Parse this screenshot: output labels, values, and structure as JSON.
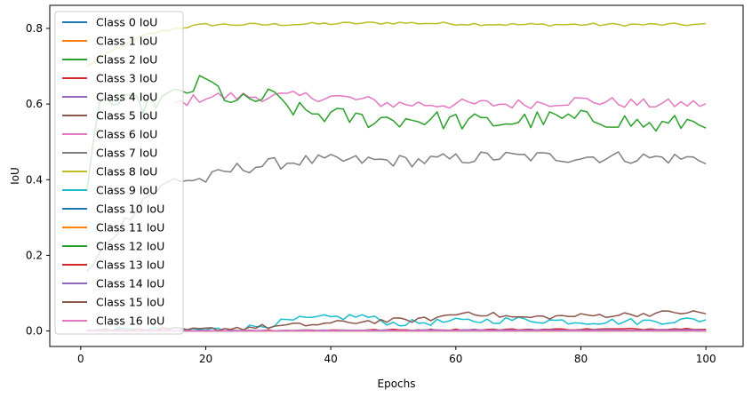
{
  "chart_data": {
    "type": "line",
    "title": "",
    "xlabel": "Epochs",
    "ylabel": "IoU",
    "xlim": [
      -4.95,
      105.95
    ],
    "ylim": [
      -0.041,
      0.861
    ],
    "xticks": [
      0,
      20,
      40,
      60,
      80,
      100
    ],
    "yticks": [
      0.0,
      0.2,
      0.4,
      0.6,
      0.8
    ],
    "xtick_labels": [
      "0",
      "20",
      "40",
      "60",
      "80",
      "100"
    ],
    "ytick_labels": [
      "0.0",
      "0.2",
      "0.4",
      "0.6",
      "0.8"
    ],
    "grid": false,
    "legend_position": "upper-left",
    "series": [
      {
        "name": "Class 0 IoU",
        "color": "#1f77b4",
        "keypoints": [
          [
            1,
            0
          ],
          [
            100,
            0
          ]
        ],
        "noise": 0
      },
      {
        "name": "Class 1 IoU",
        "color": "#ff7f0e",
        "keypoints": [
          [
            1,
            0
          ],
          [
            100,
            0
          ]
        ],
        "noise": 0
      },
      {
        "name": "Class 2 IoU",
        "color": "#2ca02c",
        "keypoints": [
          [
            1,
            0
          ],
          [
            100,
            0
          ]
        ],
        "noise": 0
      },
      {
        "name": "Class 3 IoU",
        "color": "#d62728",
        "keypoints": [
          [
            1,
            0
          ],
          [
            100,
            0
          ]
        ],
        "noise": 0
      },
      {
        "name": "Class 4 IoU",
        "color": "#9467bd",
        "keypoints": [
          [
            1,
            0
          ],
          [
            100,
            0
          ]
        ],
        "noise": 0
      },
      {
        "name": "Class 5 IoU",
        "color": "#8c564b",
        "keypoints": [
          [
            1,
            0
          ],
          [
            100,
            0
          ]
        ],
        "noise": 0
      },
      {
        "name": "Class 6 IoU",
        "color": "#e377c2",
        "keypoints": [
          [
            1,
            0
          ],
          [
            100,
            0
          ]
        ],
        "noise": 0
      },
      {
        "name": "Class 7 IoU",
        "color": "#7f7f7f",
        "keypoints": [
          [
            1,
            0
          ],
          [
            100,
            0
          ]
        ],
        "noise": 0
      },
      {
        "name": "Class 8 IoU",
        "color": "#bcbd22",
        "keypoints": [
          [
            1,
            0
          ],
          [
            100,
            0
          ]
        ],
        "noise": 0
      },
      {
        "name": "Class 9 IoU",
        "color": "#17becf",
        "keypoints": [
          [
            1,
            0
          ],
          [
            15,
            0.002
          ],
          [
            25,
            0.004
          ],
          [
            35,
            0.03
          ],
          [
            45,
            0.04
          ],
          [
            50,
            0.02
          ],
          [
            60,
            0.025
          ],
          [
            70,
            0.03
          ],
          [
            80,
            0.025
          ],
          [
            90,
            0.025
          ],
          [
            100,
            0.03
          ]
        ],
        "noise": 0.009
      },
      {
        "name": "Class 10 IoU",
        "color": "#1f77b4",
        "keypoints": [
          [
            1,
            0
          ],
          [
            100,
            0.002
          ]
        ],
        "noise": 0.001
      },
      {
        "name": "Class 11 IoU",
        "color": "#ff7f0e",
        "keypoints": [
          [
            1,
            0
          ],
          [
            100,
            0.001
          ]
        ],
        "noise": 0.001
      },
      {
        "name": "Class 12 IoU",
        "color": "#2ca02c",
        "keypoints": [
          [
            1,
            0.35
          ],
          [
            3,
            0.62
          ],
          [
            5,
            0.6
          ],
          [
            10,
            0.6
          ],
          [
            15,
            0.62
          ],
          [
            20,
            0.66
          ],
          [
            25,
            0.6
          ],
          [
            30,
            0.62
          ],
          [
            35,
            0.58
          ],
          [
            45,
            0.56
          ],
          [
            55,
            0.56
          ],
          [
            65,
            0.55
          ],
          [
            75,
            0.56
          ],
          [
            85,
            0.56
          ],
          [
            92,
            0.54
          ],
          [
            100,
            0.56
          ]
        ],
        "noise": 0.025
      },
      {
        "name": "Class 13 IoU",
        "color": "#d62728",
        "keypoints": [
          [
            1,
            0
          ],
          [
            40,
            0.002
          ],
          [
            70,
            0.004
          ],
          [
            100,
            0.006
          ]
        ],
        "noise": 0.002
      },
      {
        "name": "Class 14 IoU",
        "color": "#9467bd",
        "keypoints": [
          [
            1,
            0
          ],
          [
            50,
            0.002
          ],
          [
            100,
            0.003
          ]
        ],
        "noise": 0.001
      },
      {
        "name": "Class 15 IoU",
        "color": "#8c564b",
        "keypoints": [
          [
            1,
            0
          ],
          [
            18,
            0.002
          ],
          [
            25,
            0.008
          ],
          [
            35,
            0.015
          ],
          [
            45,
            0.025
          ],
          [
            55,
            0.03
          ],
          [
            62,
            0.05
          ],
          [
            70,
            0.035
          ],
          [
            80,
            0.04
          ],
          [
            90,
            0.045
          ],
          [
            97,
            0.05
          ],
          [
            100,
            0.045
          ]
        ],
        "noise": 0.007
      },
      {
        "name": "Class 16 IoU",
        "color": "#e377c2",
        "keypoints": [
          [
            1,
            0
          ],
          [
            100,
            0
          ]
        ],
        "noise": 0
      }
    ],
    "extra_lines": [
      {
        "color": "#bcbd22",
        "keypoints": [
          [
            1,
            0.7
          ],
          [
            5,
            0.74
          ],
          [
            10,
            0.78
          ],
          [
            15,
            0.8
          ],
          [
            20,
            0.81
          ],
          [
            30,
            0.81
          ],
          [
            50,
            0.815
          ],
          [
            70,
            0.81
          ],
          [
            85,
            0.81
          ],
          [
            100,
            0.81
          ]
        ],
        "noise": 0.004
      },
      {
        "color": "#e377c2",
        "keypoints": [
          [
            15,
            0.6
          ],
          [
            20,
            0.62
          ],
          [
            25,
            0.62
          ],
          [
            30,
            0.62
          ],
          [
            40,
            0.62
          ],
          [
            50,
            0.6
          ],
          [
            60,
            0.6
          ],
          [
            70,
            0.6
          ],
          [
            80,
            0.61
          ],
          [
            90,
            0.6
          ],
          [
            100,
            0.6
          ]
        ],
        "noise": 0.014
      },
      {
        "color": "#7f7f7f",
        "keypoints": [
          [
            1,
            0.15
          ],
          [
            5,
            0.25
          ],
          [
            10,
            0.35
          ],
          [
            15,
            0.4
          ],
          [
            20,
            0.4
          ],
          [
            25,
            0.43
          ],
          [
            35,
            0.45
          ],
          [
            45,
            0.45
          ],
          [
            55,
            0.45
          ],
          [
            65,
            0.46
          ],
          [
            75,
            0.46
          ],
          [
            85,
            0.46
          ],
          [
            100,
            0.455
          ]
        ],
        "noise": 0.017
      }
    ]
  }
}
